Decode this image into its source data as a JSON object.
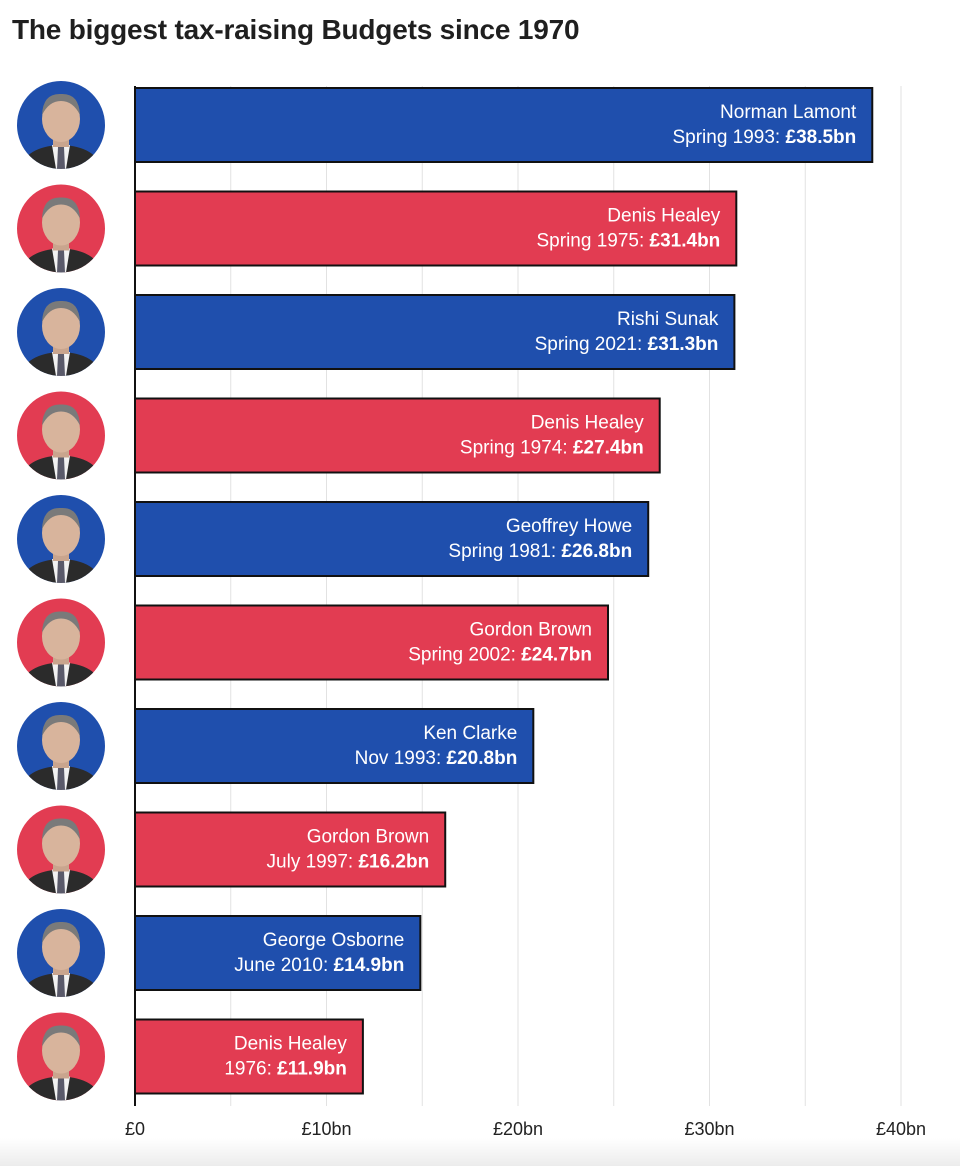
{
  "chart_data": {
    "type": "bar",
    "orientation": "horizontal",
    "title": "The biggest tax-raising Budgets since 1970",
    "xlim": [
      0,
      40
    ],
    "x_ticks": [
      0,
      10,
      20,
      30,
      40
    ],
    "x_tick_labels": [
      "£0",
      "£10bn",
      "£20bn",
      "£30bn",
      "£40bn"
    ],
    "grid": true,
    "party_colors": {
      "Conservative": "#1f4fad",
      "Labour": "#e23c52"
    },
    "bars": [
      {
        "name": "Norman Lamont",
        "budget": "Spring 1993",
        "value": 38.5,
        "value_label": "£38.5bn",
        "party": "Conservative"
      },
      {
        "name": "Denis Healey",
        "budget": "Spring 1975",
        "value": 31.4,
        "value_label": "£31.4bn",
        "party": "Labour"
      },
      {
        "name": "Rishi Sunak",
        "budget": "Spring 2021",
        "value": 31.3,
        "value_label": "£31.3bn",
        "party": "Conservative"
      },
      {
        "name": "Denis Healey",
        "budget": "Spring 1974",
        "value": 27.4,
        "value_label": "£27.4bn",
        "party": "Labour"
      },
      {
        "name": "Geoffrey Howe",
        "budget": "Spring 1981",
        "value": 26.8,
        "value_label": "£26.8bn",
        "party": "Conservative"
      },
      {
        "name": "Gordon Brown",
        "budget": "Spring 2002",
        "value": 24.7,
        "value_label": "£24.7bn",
        "party": "Labour"
      },
      {
        "name": "Ken Clarke",
        "budget": "Nov 1993",
        "value": 20.8,
        "value_label": "£20.8bn",
        "party": "Conservative"
      },
      {
        "name": "Gordon Brown",
        "budget": "July 1997",
        "value": 16.2,
        "value_label": "£16.2bn",
        "party": "Labour"
      },
      {
        "name": "George Osborne",
        "budget": "June 2010",
        "value": 14.9,
        "value_label": "£14.9bn",
        "party": "Conservative"
      },
      {
        "name": "Denis Healey",
        "budget": "1976",
        "value": 11.9,
        "value_label": "£11.9bn",
        "party": "Labour"
      }
    ]
  }
}
